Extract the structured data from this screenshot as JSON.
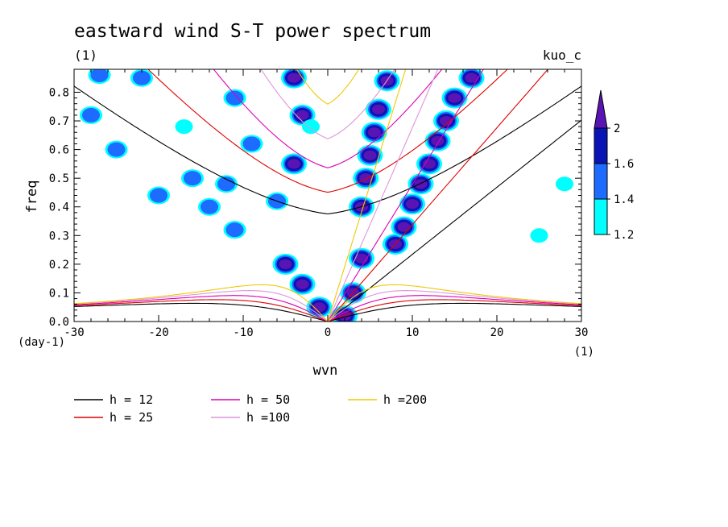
{
  "chart_data": {
    "type": "heatmap",
    "title": "eastward wind S-T power spectrum",
    "subtitle_left": "(1)",
    "subtitle_right": "kuo_c",
    "xlabel": "wvn",
    "ylabel": "freq",
    "x_unit": "(1)",
    "y_unit": "(day-1)",
    "xlim": [
      -30,
      30
    ],
    "ylim": [
      0,
      0.88
    ],
    "x_ticks": [
      -30,
      -20,
      -10,
      0,
      10,
      20,
      30
    ],
    "x_tick_labels": [
      "-30",
      "-20",
      "-10",
      "0",
      "10",
      "20",
      "30"
    ],
    "y_ticks": [
      0,
      0.1,
      0.2,
      0.3,
      0.4,
      0.5,
      0.6,
      0.7,
      0.8
    ],
    "y_tick_labels": [
      "0.0",
      "0.1",
      "0.2",
      "0.3",
      "0.4",
      "0.5",
      "0.6",
      "0.7",
      "0.8"
    ],
    "colorbar": {
      "levels": [
        1.2,
        1.4,
        1.6,
        2
      ],
      "level_labels": [
        "1.2",
        "1.4",
        "1.6",
        "2"
      ],
      "colors": [
        "#00ffff",
        "#1e6cff",
        "#0a14b4",
        "#5a14b4"
      ]
    },
    "dispersion_curves": [
      {
        "name": "h = 12",
        "h": 12,
        "color": "#000000"
      },
      {
        "name": "h = 25",
        "h": 25,
        "color": "#e00000"
      },
      {
        "name": "h = 50",
        "h": 50,
        "color": "#dc00b4"
      },
      {
        "name": "h =100",
        "h": 100,
        "color": "#dc96dc"
      },
      {
        "name": "h =200",
        "h": 200,
        "color": "#f0c800"
      }
    ],
    "power_blobs": [
      {
        "x": 2,
        "y": 0.02,
        "level": 3
      },
      {
        "x": 3,
        "y": 0.1,
        "level": 3
      },
      {
        "x": 4,
        "y": 0.22,
        "level": 3
      },
      {
        "x": 4,
        "y": 0.4,
        "level": 3
      },
      {
        "x": 4.5,
        "y": 0.5,
        "level": 3
      },
      {
        "x": 5,
        "y": 0.58,
        "level": 3
      },
      {
        "x": 5.5,
        "y": 0.66,
        "level": 3
      },
      {
        "x": 6,
        "y": 0.74,
        "level": 3
      },
      {
        "x": 7,
        "y": 0.84,
        "level": 3
      },
      {
        "x": 8,
        "y": 0.27,
        "level": 3
      },
      {
        "x": 9,
        "y": 0.33,
        "level": 3
      },
      {
        "x": 10,
        "y": 0.41,
        "level": 3
      },
      {
        "x": 11,
        "y": 0.48,
        "level": 3
      },
      {
        "x": 12,
        "y": 0.55,
        "level": 3
      },
      {
        "x": 13,
        "y": 0.63,
        "level": 3
      },
      {
        "x": 14,
        "y": 0.7,
        "level": 3
      },
      {
        "x": 15,
        "y": 0.78,
        "level": 3
      },
      {
        "x": 17,
        "y": 0.85,
        "level": 3
      },
      {
        "x": -1,
        "y": 0.05,
        "level": 3
      },
      {
        "x": -3,
        "y": 0.13,
        "level": 3
      },
      {
        "x": -5,
        "y": 0.2,
        "level": 3
      },
      {
        "x": -4,
        "y": 0.55,
        "level": 3
      },
      {
        "x": -3,
        "y": 0.72,
        "level": 3
      },
      {
        "x": -4,
        "y": 0.85,
        "level": 3
      },
      {
        "x": -9,
        "y": 0.62,
        "level": 2
      },
      {
        "x": -12,
        "y": 0.48,
        "level": 2
      },
      {
        "x": -14,
        "y": 0.4,
        "level": 2
      },
      {
        "x": -16,
        "y": 0.5,
        "level": 2
      },
      {
        "x": -20,
        "y": 0.44,
        "level": 2
      },
      {
        "x": -25,
        "y": 0.6,
        "level": 2
      },
      {
        "x": -28,
        "y": 0.72,
        "level": 2
      },
      {
        "x": -27,
        "y": 0.86,
        "level": 2
      },
      {
        "x": -22,
        "y": 0.85,
        "level": 2
      },
      {
        "x": -11,
        "y": 0.78,
        "level": 2
      },
      {
        "x": -11,
        "y": 0.32,
        "level": 2
      },
      {
        "x": -6,
        "y": 0.42,
        "level": 2
      },
      {
        "x": 25,
        "y": 0.3,
        "level": 1
      },
      {
        "x": 28,
        "y": 0.48,
        "level": 1
      },
      {
        "x": -17,
        "y": 0.68,
        "level": 1
      },
      {
        "x": -2,
        "y": 0.68,
        "level": 1
      }
    ]
  },
  "legend": [
    {
      "label": "h = 12",
      "color": "#000000"
    },
    {
      "label": "h = 25",
      "color": "#e00000"
    },
    {
      "label": "h = 50",
      "color": "#dc00b4"
    },
    {
      "label": "h =100",
      "color": "#dc96dc"
    },
    {
      "label": "h =200",
      "color": "#f0c800"
    }
  ]
}
